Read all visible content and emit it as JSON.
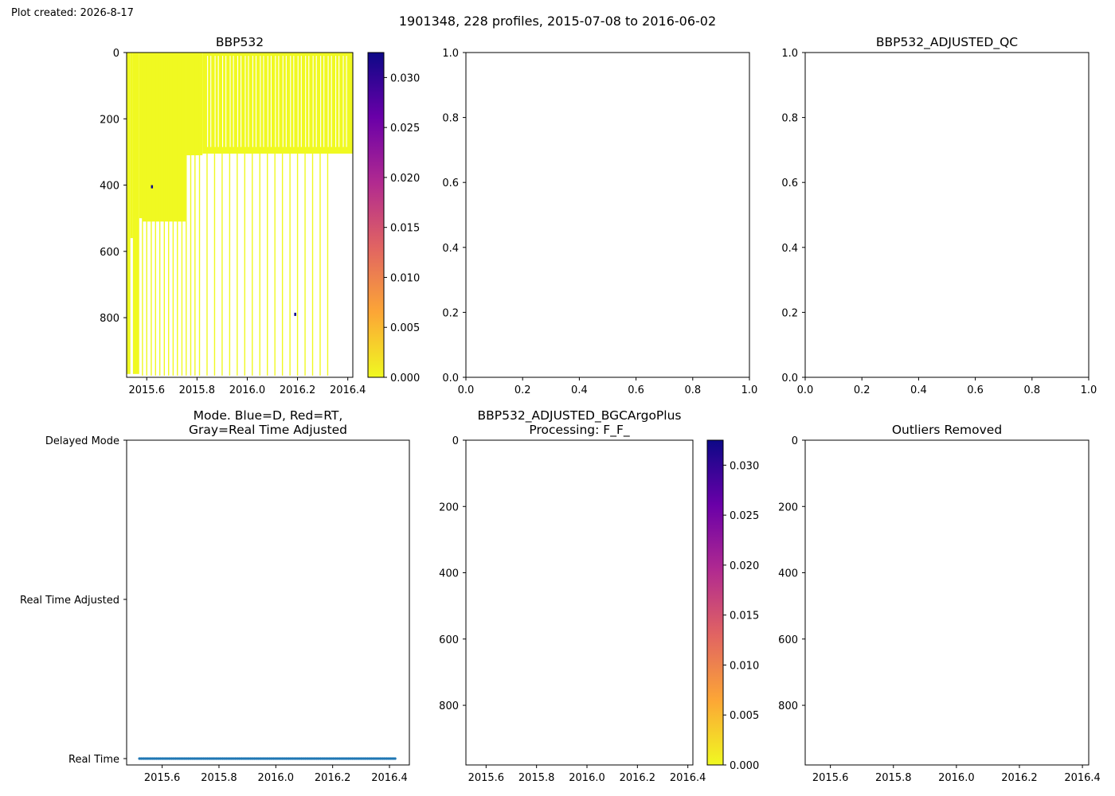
{
  "created_text": "Plot created: 2026-8-17",
  "suptitle": "1901348, 228 profiles, 2015-07-08 to 2016-06-02",
  "colormap": [
    "#f0f921",
    "#fca636",
    "#e16462",
    "#b12a90",
    "#6a00a8",
    "#0d0887"
  ],
  "chart_data": [
    {
      "type": "heatmap",
      "title": "BBP532",
      "x_ticks": [
        "2015.6",
        "2015.8",
        "2016.0",
        "2016.2",
        "2016.4"
      ],
      "x_tick_values": [
        2015.6,
        2015.8,
        2016.0,
        2016.2,
        2016.4
      ],
      "xlim": [
        2015.52,
        2016.42
      ],
      "y_ticks": [
        "0",
        "200",
        "400",
        "600",
        "800"
      ],
      "y_tick_values": [
        0,
        200,
        400,
        600,
        800
      ],
      "ylim": [
        0,
        980
      ],
      "y_inverted": true,
      "colorbar": {
        "ticks": [
          "0.000",
          "0.005",
          "0.010",
          "0.015",
          "0.020",
          "0.025",
          "0.030"
        ],
        "tick_values": [
          0,
          0.005,
          0.01,
          0.015,
          0.02,
          0.025,
          0.03
        ],
        "range": [
          0,
          0.0325
        ]
      },
      "profiles": [
        {
          "x": [
            2015.52,
            2015.535
          ],
          "max_depth": 970
        },
        {
          "x": [
            2015.535,
            2015.545
          ],
          "max_depth": 560
        },
        {
          "x": [
            2015.545,
            2015.57
          ],
          "max_depth": 970
        },
        {
          "x": [
            2015.57,
            2015.583
          ],
          "max_depth": 500
        },
        {
          "x": [
            2015.583,
            2015.755
          ],
          "max_depth": 510
        },
        {
          "x": [
            2015.755,
            2015.822
          ],
          "max_depth": 310
        },
        {
          "x": [
            2015.822,
            2016.42
          ],
          "max_depth": 305
        }
      ],
      "deep_casts": [
        2015.583,
        2015.6,
        2015.618,
        2015.635,
        2015.652,
        2015.67,
        2015.687,
        2015.705,
        2015.722,
        2015.74,
        2015.757,
        2015.775,
        2015.792,
        2015.81,
        2015.84,
        2015.87,
        2015.9,
        2015.93,
        2015.96,
        2015.99,
        2016.02,
        2016.05,
        2016.08,
        2016.11,
        2016.14,
        2016.17,
        2016.2,
        2016.23,
        2016.26,
        2016.29,
        2016.32
      ],
      "shallow_casts_white": [
        2015.842,
        2015.855,
        2015.872,
        2015.885,
        2015.902,
        2015.915,
        2015.932,
        2015.945,
        2015.962,
        2015.975,
        2015.992,
        2016.005,
        2016.022,
        2016.035,
        2016.052,
        2016.065,
        2016.082,
        2016.095,
        2016.112,
        2016.125,
        2016.142,
        2016.155,
        2016.172,
        2016.185,
        2016.202,
        2016.215,
        2016.232,
        2016.245,
        2016.262,
        2016.275,
        2016.292,
        2016.305,
        2016.322,
        2016.335,
        2016.352,
        2016.365,
        2016.382,
        2016.395
      ],
      "high_value_points": [
        {
          "x": 2016.19,
          "y": 790,
          "value": 0.032
        },
        {
          "x": 2015.62,
          "y": 405,
          "value": 0.03
        }
      ]
    },
    {
      "type": "line",
      "title": "",
      "x_ticks": [
        "0.0",
        "0.2",
        "0.4",
        "0.6",
        "0.8",
        "1.0"
      ],
      "x_tick_values": [
        0,
        0.2,
        0.4,
        0.6,
        0.8,
        1.0
      ],
      "xlim": [
        0,
        1
      ],
      "y_ticks": [
        "0.0",
        "0.2",
        "0.4",
        "0.6",
        "0.8",
        "1.0"
      ],
      "y_tick_values": [
        0,
        0.2,
        0.4,
        0.6,
        0.8,
        1.0
      ],
      "ylim": [
        0,
        1
      ]
    },
    {
      "type": "line",
      "title": "BBP532_ADJUSTED_QC",
      "x_ticks": [
        "0.0",
        "0.2",
        "0.4",
        "0.6",
        "0.8",
        "1.0"
      ],
      "x_tick_values": [
        0,
        0.2,
        0.4,
        0.6,
        0.8,
        1.0
      ],
      "xlim": [
        0,
        1
      ],
      "y_ticks": [
        "0.0",
        "0.2",
        "0.4",
        "0.6",
        "0.8",
        "1.0"
      ],
      "y_tick_values": [
        0,
        0.2,
        0.4,
        0.6,
        0.8,
        1.0
      ],
      "ylim": [
        0,
        1
      ]
    },
    {
      "type": "scatter",
      "title_lines": [
        "Mode. Blue=D, Red=RT,",
        "Gray=Real Time Adjusted"
      ],
      "x_ticks": [
        "2015.6",
        "2015.8",
        "2016.0",
        "2016.2",
        "2016.4"
      ],
      "x_tick_values": [
        2015.6,
        2015.8,
        2016.0,
        2016.2,
        2016.4
      ],
      "xlim": [
        2015.475,
        2016.47
      ],
      "categories": [
        "Real Time",
        "Real Time Adjusted",
        "Delayed Mode"
      ],
      "y_tick_values": [
        0,
        1,
        2
      ],
      "ylim": [
        -0.04,
        2.0
      ],
      "series": [
        {
          "mode": 0,
          "x_start": 2015.52,
          "x_end": 2016.42,
          "color": "#1f77b4"
        }
      ]
    },
    {
      "type": "heatmap",
      "title_lines": [
        "BBP532_ADJUSTED_BGCArgoPlus",
        "Processing: F_F_"
      ],
      "x_ticks": [
        "2015.6",
        "2015.8",
        "2016.0",
        "2016.2",
        "2016.4"
      ],
      "x_tick_values": [
        2015.6,
        2015.8,
        2016.0,
        2016.2,
        2016.4
      ],
      "xlim": [
        2015.52,
        2016.42
      ],
      "y_ticks": [
        "0",
        "200",
        "400",
        "600",
        "800"
      ],
      "y_tick_values": [
        0,
        200,
        400,
        600,
        800
      ],
      "ylim": [
        0,
        980
      ],
      "y_inverted": true,
      "colorbar": {
        "ticks": [
          "0.000",
          "0.005",
          "0.010",
          "0.015",
          "0.020",
          "0.025",
          "0.030"
        ],
        "tick_values": [
          0,
          0.005,
          0.01,
          0.015,
          0.02,
          0.025,
          0.03
        ],
        "range": [
          0,
          0.0325
        ]
      }
    },
    {
      "type": "heatmap",
      "title": "Outliers Removed",
      "x_ticks": [
        "2015.6",
        "2015.8",
        "2016.0",
        "2016.2",
        "2016.4"
      ],
      "x_tick_values": [
        2015.6,
        2015.8,
        2016.0,
        2016.2,
        2016.4
      ],
      "xlim": [
        2015.52,
        2016.42
      ],
      "y_ticks": [
        "0",
        "200",
        "400",
        "600",
        "800"
      ],
      "y_tick_values": [
        0,
        200,
        400,
        600,
        800
      ],
      "ylim": [
        0,
        980
      ],
      "y_inverted": true
    }
  ]
}
